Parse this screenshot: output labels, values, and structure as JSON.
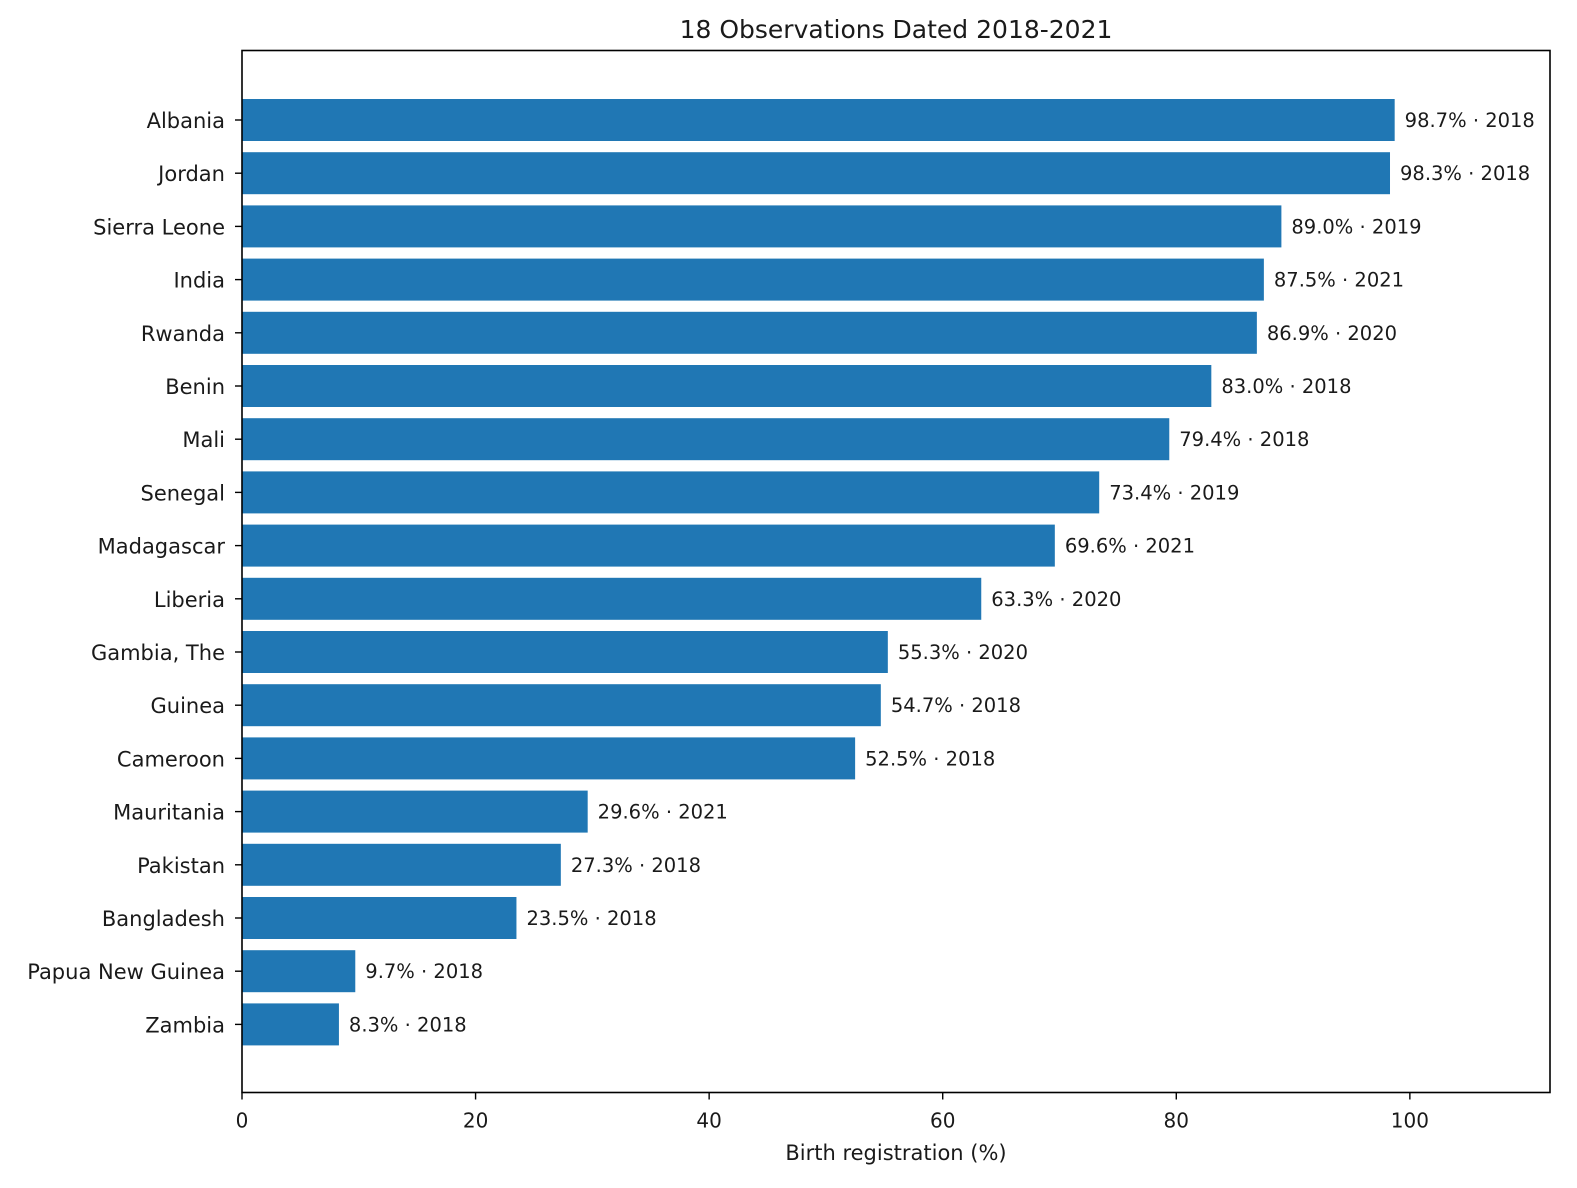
{
  "chart_data": {
    "type": "bar",
    "orientation": "horizontal",
    "title": "18 Observations Dated 2018-2021",
    "xlabel": "Birth registration (%)",
    "ylabel": "",
    "xlim": [
      0,
      112
    ],
    "xticks": [
      0,
      20,
      40,
      60,
      80,
      100
    ],
    "grid": false,
    "bar_color": "#2077b4",
    "categories": [
      "Albania",
      "Jordan",
      "Sierra Leone",
      "India",
      "Rwanda",
      "Benin",
      "Mali",
      "Senegal",
      "Madagascar",
      "Liberia",
      "Gambia, The",
      "Guinea",
      "Cameroon",
      "Mauritania",
      "Pakistan",
      "Bangladesh",
      "Papua New Guinea",
      "Zambia"
    ],
    "values": [
      98.7,
      98.3,
      89.0,
      87.5,
      86.9,
      83.0,
      79.4,
      73.4,
      69.6,
      63.3,
      55.3,
      54.7,
      52.5,
      29.6,
      27.3,
      23.5,
      9.7,
      8.3
    ],
    "years": [
      2018,
      2018,
      2019,
      2021,
      2020,
      2018,
      2018,
      2019,
      2021,
      2020,
      2020,
      2018,
      2018,
      2021,
      2018,
      2018,
      2018,
      2018
    ],
    "data_labels": [
      "98.7% · 2018",
      "98.3% · 2018",
      "89.0% · 2019",
      "87.5% · 2021",
      "86.9% · 2020",
      "83.0% · 2018",
      "79.4% · 2018",
      "73.4% · 2019",
      "69.6% · 2021",
      "63.3% · 2020",
      "55.3% · 2020",
      "54.7% · 2018",
      "52.5% · 2018",
      "29.6% · 2021",
      "27.3% · 2018",
      "23.5% · 2018",
      "9.7% · 2018",
      "8.3% · 2018"
    ]
  }
}
